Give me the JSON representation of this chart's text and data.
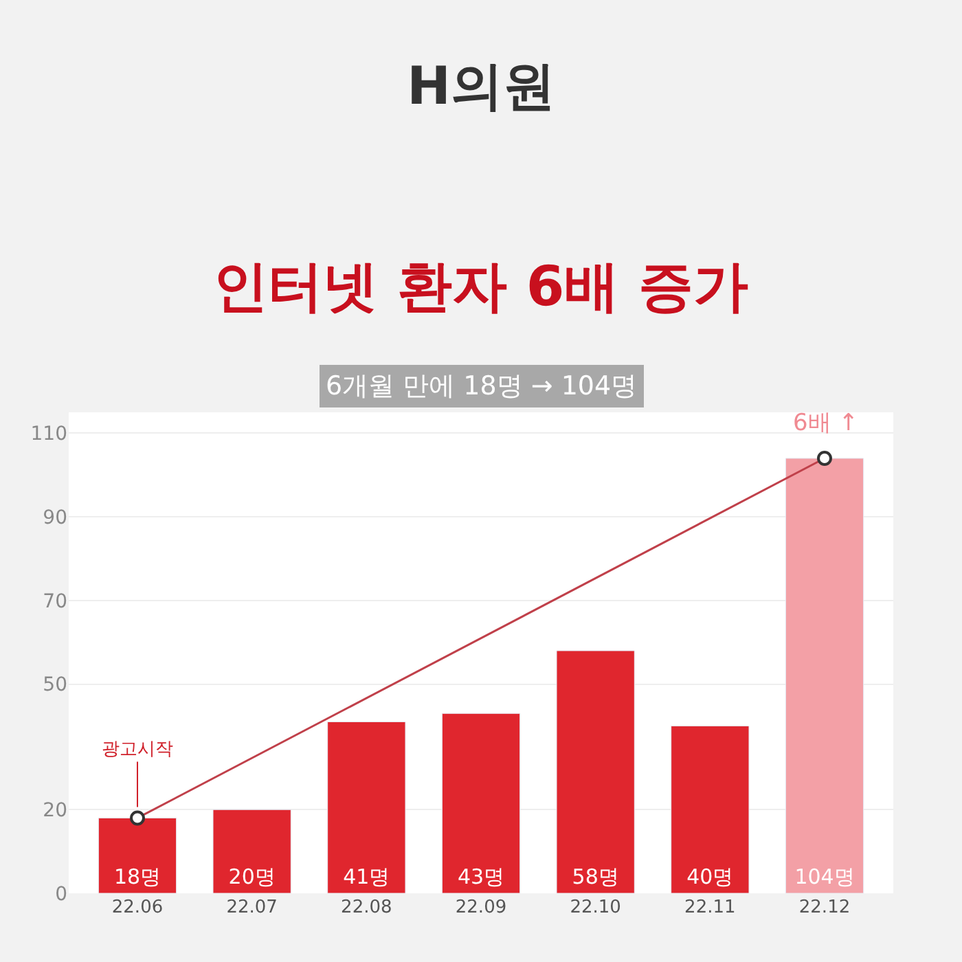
{
  "chart_data": {
    "type": "bar",
    "title": "H의원",
    "subtitle": "인터넷 환자 6배 증가",
    "annotations": [
      "6개월 만에 18명 → 104명",
      {
        "text": "광고시작",
        "x": "22.06",
        "y": 18
      },
      {
        "text": "6배 ↑",
        "x": "22.12",
        "y": 104
      }
    ],
    "categories": [
      "22.06",
      "22.07",
      "22.08",
      "22.09",
      "22.10",
      "22.11",
      "22.12"
    ],
    "values": [
      18,
      20,
      41,
      43,
      58,
      40,
      104
    ],
    "value_labels": [
      "18명",
      "20명",
      "41명",
      "43명",
      "58명",
      "40명",
      "104명"
    ],
    "colors": [
      "#e0262e",
      "#e0262e",
      "#e0262e",
      "#e0262e",
      "#e0262e",
      "#e0262e",
      "#f3a0a6"
    ],
    "series": [
      {
        "type": "line",
        "color": "#c0404a",
        "values": [
          18,
          null,
          null,
          null,
          null,
          null,
          104
        ]
      }
    ],
    "ylim": [
      0,
      115
    ],
    "yticks": [
      0,
      20,
      50,
      70,
      90,
      110
    ],
    "grid": "y",
    "marker": "circle"
  }
}
